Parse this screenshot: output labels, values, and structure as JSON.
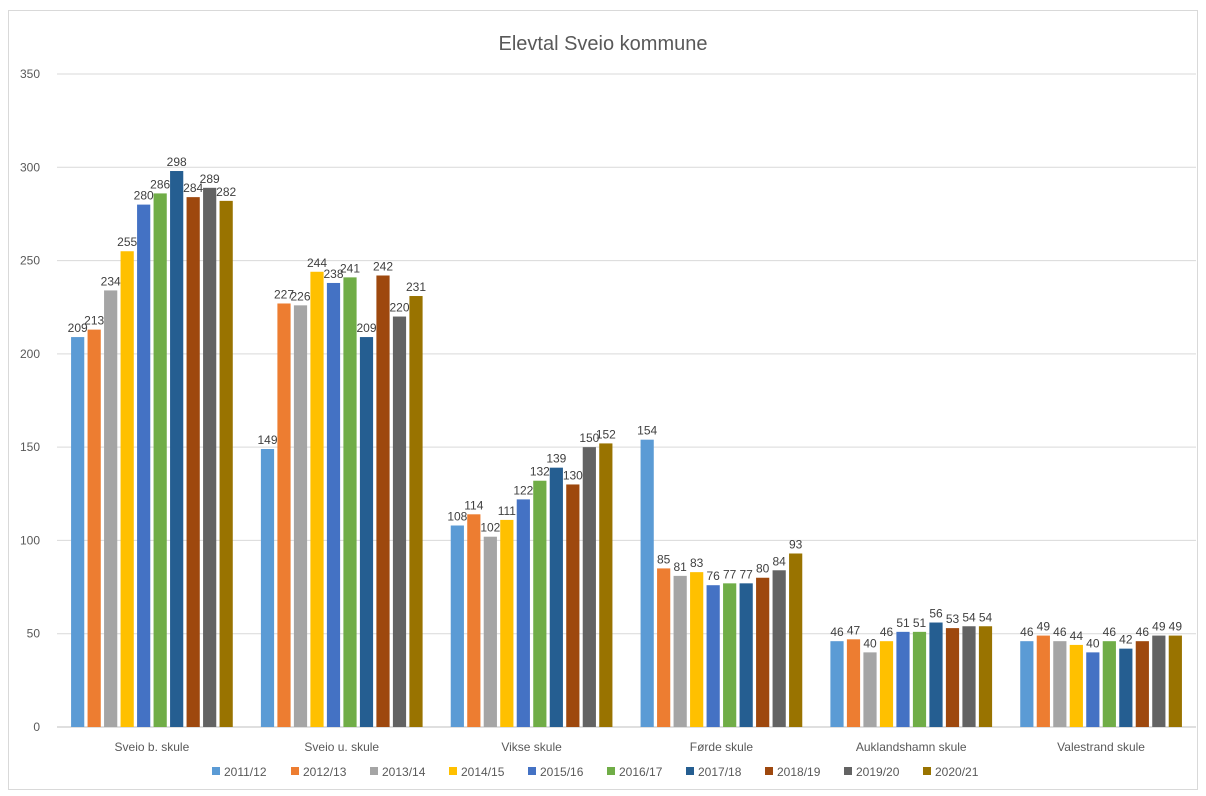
{
  "chart_data": {
    "type": "bar",
    "title": "Elevtal Sveio kommune",
    "xlabel": "",
    "ylabel": "",
    "ylim": [
      0,
      350
    ],
    "yticks": [
      0,
      50,
      100,
      150,
      200,
      250,
      300,
      350
    ],
    "grid": true,
    "legend_position": "bottom",
    "categories": [
      "Sveio b. skule",
      "Sveio u. skule",
      "Vikse skule",
      "Førde  skule",
      "Auklandshamn skule",
      "Valestrand skule"
    ],
    "series": [
      {
        "name": "2011/12",
        "color": "#5b9bd5",
        "values": [
          209,
          149,
          108,
          154,
          46,
          46
        ]
      },
      {
        "name": "2012/13",
        "color": "#ed7d31",
        "values": [
          213,
          227,
          114,
          85,
          47,
          49
        ]
      },
      {
        "name": "2013/14",
        "color": "#a5a5a5",
        "values": [
          234,
          226,
          102,
          81,
          40,
          46
        ]
      },
      {
        "name": "2014/15",
        "color": "#ffc000",
        "values": [
          255,
          244,
          111,
          83,
          46,
          44
        ]
      },
      {
        "name": "2015/16",
        "color": "#4472c4",
        "values": [
          280,
          238,
          122,
          76,
          51,
          40
        ]
      },
      {
        "name": "2016/17",
        "color": "#70ad47",
        "values": [
          286,
          241,
          132,
          77,
          51,
          46
        ]
      },
      {
        "name": "2017/18",
        "color": "#255e91",
        "values": [
          298,
          209,
          139,
          77,
          56,
          42
        ]
      },
      {
        "name": "2018/19",
        "color": "#9e480e",
        "values": [
          284,
          242,
          130,
          80,
          53,
          46
        ]
      },
      {
        "name": "2019/20",
        "color": "#636363",
        "values": [
          289,
          220,
          150,
          84,
          54,
          49
        ]
      },
      {
        "name": "2020/21",
        "color": "#997300",
        "values": [
          282,
          231,
          152,
          93,
          54,
          49
        ]
      }
    ]
  }
}
